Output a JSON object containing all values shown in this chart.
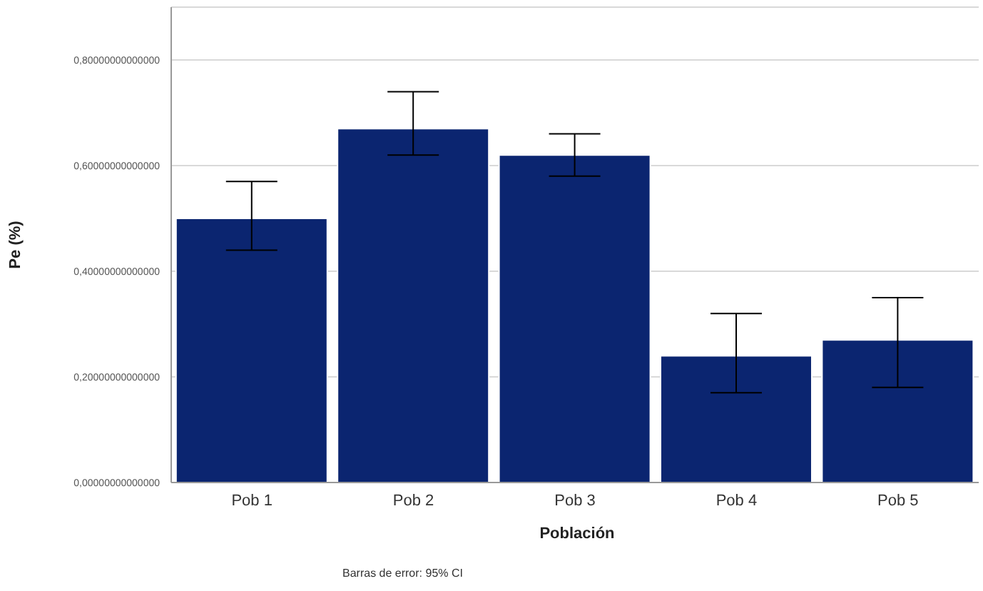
{
  "chart_data": {
    "type": "bar",
    "xlabel": "Población",
    "ylabel": "Pe (%)",
    "categories": [
      "Pob 1",
      "Pob 2",
      "Pob 3",
      "Pob 4",
      "Pob 5"
    ],
    "values": [
      0.5,
      0.67,
      0.62,
      0.24,
      0.27
    ],
    "errors": [
      [
        0.44,
        0.57
      ],
      [
        0.62,
        0.74
      ],
      [
        0.58,
        0.66
      ],
      [
        0.17,
        0.32
      ],
      [
        0.18,
        0.35
      ]
    ],
    "color": "#0b2570",
    "ylim": [
      0,
      0.9
    ],
    "yticks": [
      {
        "value": 0,
        "label": "0,00000000000000"
      },
      {
        "value": 0.2,
        "label": "0,20000000000000"
      },
      {
        "value": 0.4,
        "label": "0,40000000000000"
      },
      {
        "value": 0.6,
        "label": "0,60000000000000"
      },
      {
        "value": 0.8,
        "label": "0,80000000000000"
      }
    ],
    "grid": "y",
    "annotations": [
      "Barras de error: 95% CI"
    ]
  }
}
